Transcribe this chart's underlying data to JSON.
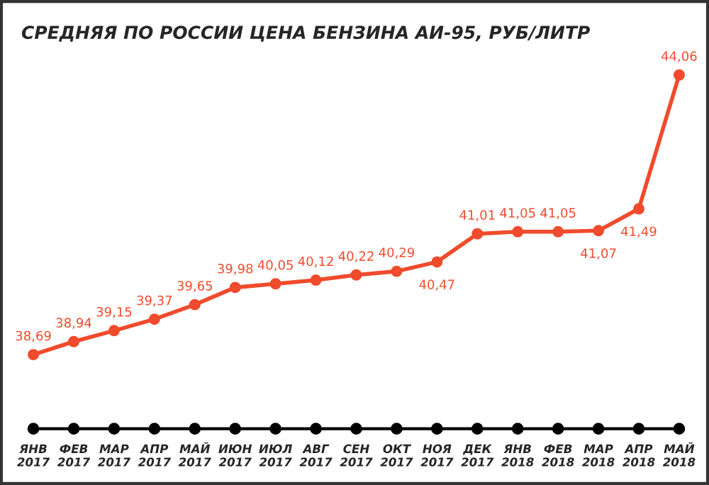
{
  "chart_data": {
    "type": "line",
    "title": "СРЕДНЯЯ ПО РОССИИ ЦЕНА БЕНЗИНА АИ-95, РУБ/ЛИТР",
    "categories": [
      "ЯНВ\n2017",
      "ФЕВ\n2017",
      "МАР\n2017",
      "АПР\n2017",
      "МАЙ\n2017",
      "ИЮН\n2017",
      "ИЮЛ\n2017",
      "АВГ\n2017",
      "СЕН\n2017",
      "ОКТ\n2017",
      "НОЯ\n2017",
      "ДЕК\n2017",
      "ЯНВ\n2018",
      "ФЕВ\n2018",
      "МАР\n2018",
      "АПР\n2018",
      "МАЙ\n2018"
    ],
    "series": [
      {
        "color": "#ef4b2c",
        "values": [
          38.69,
          38.94,
          39.15,
          39.37,
          39.65,
          39.98,
          40.05,
          40.12,
          40.22,
          40.29,
          40.47,
          41.01,
          41.05,
          41.05,
          41.07,
          41.49,
          44.06
        ],
        "value_labels": [
          "38,69",
          "38,94",
          "39,15",
          "39,37",
          "39,65",
          "39,98",
          "40,05",
          "40,12",
          "40,22",
          "40,29",
          "40,47",
          "41,01",
          "41,05",
          "41,05",
          "41,07",
          "41,49",
          "44,06"
        ]
      }
    ],
    "marker": "circle",
    "line_style": "solid",
    "legend": false
  }
}
